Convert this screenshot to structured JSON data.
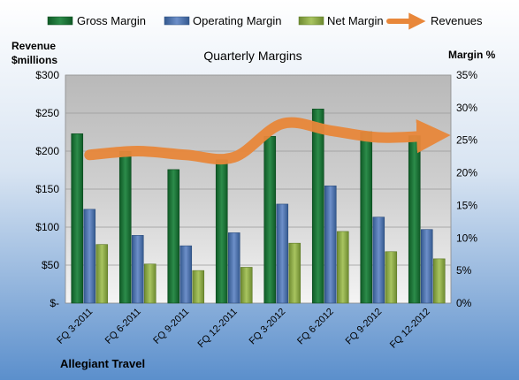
{
  "chart_data": {
    "type": "bar",
    "title": "Quarterly Margins",
    "company": "Allegiant Travel",
    "left_axis_label_line1": "Revenue",
    "left_axis_label_line2": "$millions",
    "right_axis_label": "Margin %",
    "categories": [
      "FQ 3-2011",
      "FQ 6-2011",
      "FQ 9-2011",
      "FQ 12-2011",
      "FQ 3-2012",
      "FQ 6-2012",
      "FQ 9-2012",
      "FQ 12-2012"
    ],
    "series": [
      {
        "name": "Gross Margin",
        "axis": "right",
        "color": "#1f7a3a",
        "values": [
          26.0,
          23.3,
          20.5,
          22.0,
          25.6,
          29.8,
          26.3,
          25.7
        ]
      },
      {
        "name": "Operating Margin",
        "axis": "right",
        "color": "#4f76b8",
        "values": [
          14.4,
          10.4,
          8.8,
          10.8,
          15.2,
          18.0,
          13.2,
          11.3
        ]
      },
      {
        "name": "Net Margin",
        "axis": "right",
        "color": "#8fae4a",
        "values": [
          9.0,
          6.0,
          5.0,
          5.5,
          9.2,
          11.0,
          7.9,
          6.8
        ]
      },
      {
        "name": "Revenues",
        "axis": "left",
        "color": "#e8873a",
        "type": "line",
        "values": [
          195,
          200,
          195,
          192,
          236,
          227,
          218,
          220
        ]
      }
    ],
    "left_axis": {
      "ylim": [
        0,
        300
      ],
      "ticks": [
        "$-",
        "$50",
        "$100",
        "$150",
        "$200",
        "$250",
        "$300"
      ]
    },
    "right_axis": {
      "ylim": [
        0,
        35
      ],
      "ticks": [
        "0%",
        "5%",
        "10%",
        "15%",
        "20%",
        "25%",
        "30%",
        "35%"
      ]
    },
    "grid": true,
    "legend_position": "top"
  }
}
